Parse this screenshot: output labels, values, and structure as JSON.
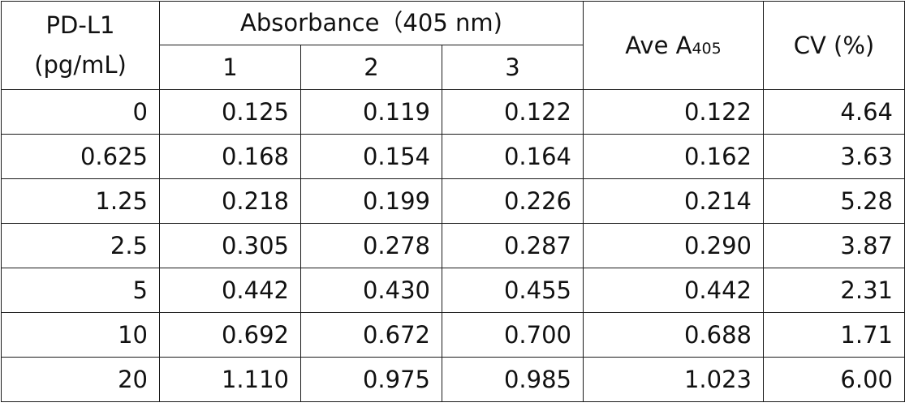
{
  "table": {
    "header": {
      "concentration_line1": "PD-L1",
      "concentration_line2": "(pg/mL)",
      "absorbance_group": "Absorbance（405 nm)",
      "replicates": [
        "1",
        "2",
        "3"
      ],
      "average_main": "Ave A",
      "average_sub": "405",
      "cv": "CV (%)"
    },
    "rows": [
      [
        "0",
        "0.125",
        "0.119",
        "0.122",
        "0.122",
        "4.64"
      ],
      [
        "0.625",
        "0.168",
        "0.154",
        "0.164",
        "0.162",
        "3.63"
      ],
      [
        "1.25",
        "0.218",
        "0.199",
        "0.226",
        "0.214",
        "5.28"
      ],
      [
        "2.5",
        "0.305",
        "0.278",
        "0.287",
        "0.290",
        "3.87"
      ],
      [
        "5",
        "0.442",
        "0.430",
        "0.455",
        "0.442",
        "2.31"
      ],
      [
        "10",
        "0.692",
        "0.672",
        "0.700",
        "0.688",
        "1.71"
      ],
      [
        "20",
        "1.110",
        "0.975",
        "0.985",
        "1.023",
        "6.00"
      ]
    ]
  },
  "chart_data": {
    "type": "table",
    "columns": [
      "PD-L1 (pg/mL)",
      "Absorbance（405 nm) 1",
      "Absorbance（405 nm) 2",
      "Absorbance（405 nm) 3",
      "Ave A405",
      "CV (%)"
    ],
    "rows": [
      [
        0,
        0.125,
        0.119,
        0.122,
        0.122,
        4.64
      ],
      [
        0.625,
        0.168,
        0.154,
        0.164,
        0.162,
        3.63
      ],
      [
        1.25,
        0.218,
        0.199,
        0.226,
        0.214,
        5.28
      ],
      [
        2.5,
        0.305,
        0.278,
        0.287,
        0.29,
        3.87
      ],
      [
        5,
        0.442,
        0.43,
        0.455,
        0.442,
        2.31
      ],
      [
        10,
        0.692,
        0.672,
        0.7,
        0.688,
        1.71
      ],
      [
        20,
        1.11,
        0.975,
        0.985,
        1.023,
        6.0
      ]
    ]
  }
}
